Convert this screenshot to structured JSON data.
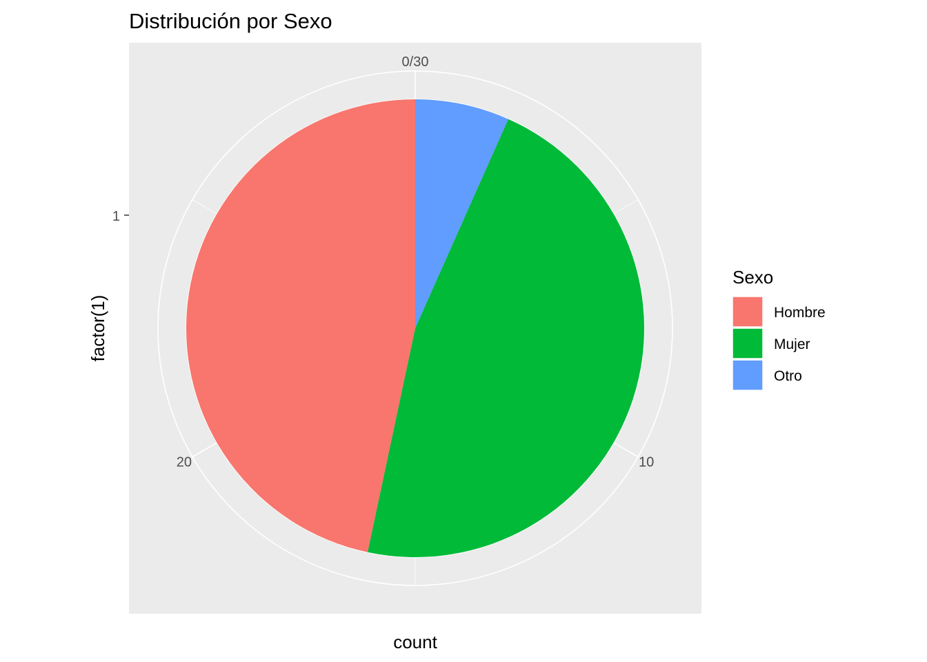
{
  "chart_data": {
    "type": "pie",
    "title": "Distribución por Sexo",
    "xlabel": "count",
    "ylabel": "factor(1)",
    "y_tick_labels": [
      "1"
    ],
    "angular_ticks": [
      {
        "value": 0,
        "label": "0/30"
      },
      {
        "value": 10,
        "label": "10"
      },
      {
        "value": 20,
        "label": "20"
      }
    ],
    "total": 30,
    "categories": [
      "Otro",
      "Mujer",
      "Hombre"
    ],
    "values": [
      2,
      14,
      14
    ],
    "colors": [
      "#619CFF",
      "#00BA38",
      "#F8766D"
    ],
    "legend": {
      "title": "Sexo",
      "placement": "right",
      "items": [
        {
          "label": "Hombre",
          "color": "#F8766D"
        },
        {
          "label": "Mujer",
          "color": "#00BA38"
        },
        {
          "label": "Otro",
          "color": "#619CFF"
        }
      ]
    },
    "panel_background": "#EBEBEB",
    "grid": true
  }
}
